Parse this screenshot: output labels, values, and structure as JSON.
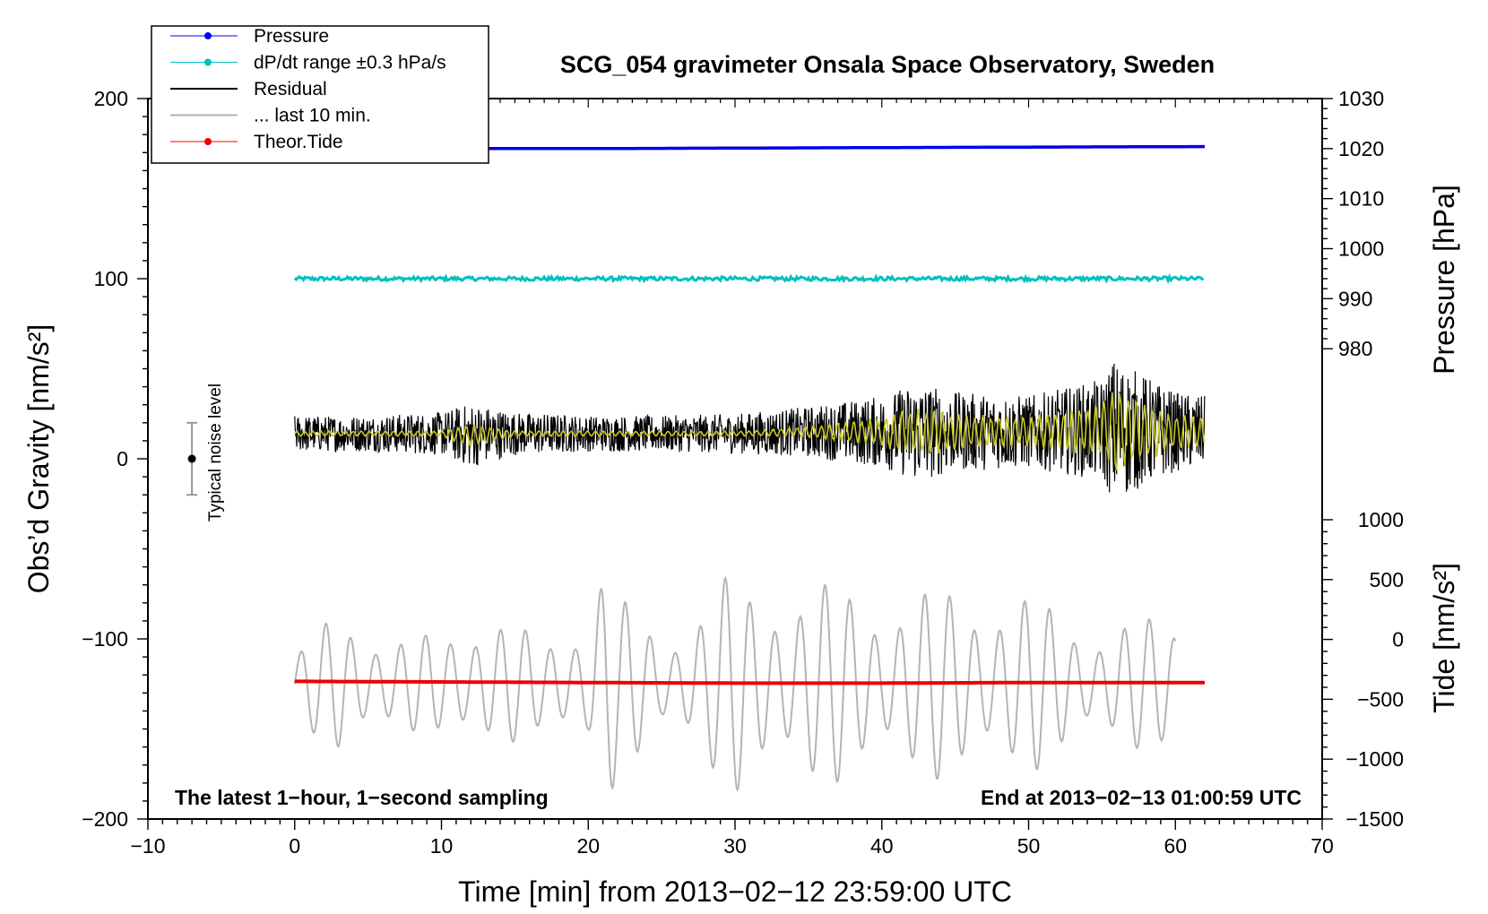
{
  "chart_data": {
    "type": "line",
    "title": "SCG_054 gravimeter Onsala Space Observatory, Sweden",
    "xlabel": "Time [min] from 2013−02−12 23:59:00 UTC",
    "ylabel_left": "Obs’d Gravity [nm/s²]",
    "ylabel_right_top": "Pressure [hPa]",
    "ylabel_right_bottom": "Tide [nm/s²]",
    "xlim": [
      -10,
      70
    ],
    "ylim": [
      -200,
      200
    ],
    "pressure_ylim": [
      970,
      1030
    ],
    "tide_ylim": [
      -1500,
      1000
    ],
    "x_ticks": [
      "−10",
      "0",
      "10",
      "20",
      "30",
      "40",
      "50",
      "60",
      "70"
    ],
    "y_ticks": [
      "200",
      "100",
      "0",
      "−100",
      "−200"
    ],
    "pressure_ticks": [
      "1030",
      "1020",
      "1010",
      "1000",
      "990",
      "980"
    ],
    "tide_ticks": [
      "1000",
      "500",
      "0",
      "−500",
      "−1000",
      "−1500"
    ],
    "annotation_left": "The latest 1−hour, 1−second sampling",
    "annotation_right": "End at 2013−02−13 01:00:59 UTC",
    "noise_label": "Typical noise level",
    "noise_bar": {
      "x": -7,
      "y": 0,
      "low": -20,
      "high": 20
    },
    "legend_placement": "top-left",
    "legend": [
      {
        "label": "Pressure",
        "color": "#0000ee",
        "marker": true
      },
      {
        "label": "dP/dt range ±0.3 hPa/s",
        "color": "#00c0c0",
        "marker": true
      },
      {
        "label": "Residual",
        "color": "#000000",
        "marker": false
      },
      {
        "label": "... last 10 min.",
        "color": "#b4b4b4",
        "marker": false
      },
      {
        "label": "Theor.Tide",
        "color": "#ee0000",
        "marker": true
      }
    ],
    "series": [
      {
        "name": "Pressure",
        "axis": "pressure",
        "color": "#0000ee",
        "x": [
          0,
          10,
          20,
          30,
          40,
          50,
          62
        ],
        "y": [
          1020.0,
          1020.0,
          1020.0,
          1020.1,
          1020.2,
          1020.3,
          1020.4
        ]
      },
      {
        "name": "dP/dt range ±0.3 hPa/s",
        "axis": "left",
        "color": "#00c0c0",
        "x": [
          0,
          62
        ],
        "y": [
          100,
          100
        ]
      },
      {
        "name": "Residual",
        "axis": "left",
        "color": "#000000",
        "x": [
          0,
          5,
          10,
          12,
          15,
          20,
          25,
          30,
          35,
          40,
          42.5,
          45,
          50,
          55,
          55.8,
          60,
          62
        ],
        "y": [
          14,
          14,
          14,
          13,
          14,
          14,
          14,
          14,
          15,
          15,
          15,
          15,
          15,
          16,
          16,
          15,
          15
        ],
        "envelope": [
          10,
          10,
          12,
          18,
          12,
          10,
          10,
          11,
          14,
          20,
          28,
          22,
          20,
          28,
          40,
          22,
          20
        ]
      },
      {
        "name": "... last 10 min.",
        "axis": "left",
        "color": "#b4b4b4",
        "x": [
          0,
          3,
          7,
          10,
          13,
          17,
          20,
          21.2,
          22,
          25,
          29.8,
          31,
          35,
          40,
          45,
          50,
          55,
          60
        ],
        "y": [
          -125,
          -100,
          -115,
          -115,
          -95,
          -120,
          -95,
          -52,
          -90,
          -115,
          -75,
          -85,
          -80,
          -90,
          -85,
          -90,
          -110,
          -100
        ]
      },
      {
        "name": "Theor.Tide",
        "axis": "tide",
        "color": "#ee0000",
        "x": [
          0,
          10,
          20,
          30,
          40,
          50,
          62
        ],
        "y": [
          -350,
          -355,
          -360,
          -365,
          -365,
          -360,
          -360
        ]
      }
    ],
    "colors": {
      "highpass": "#c8c820"
    }
  }
}
